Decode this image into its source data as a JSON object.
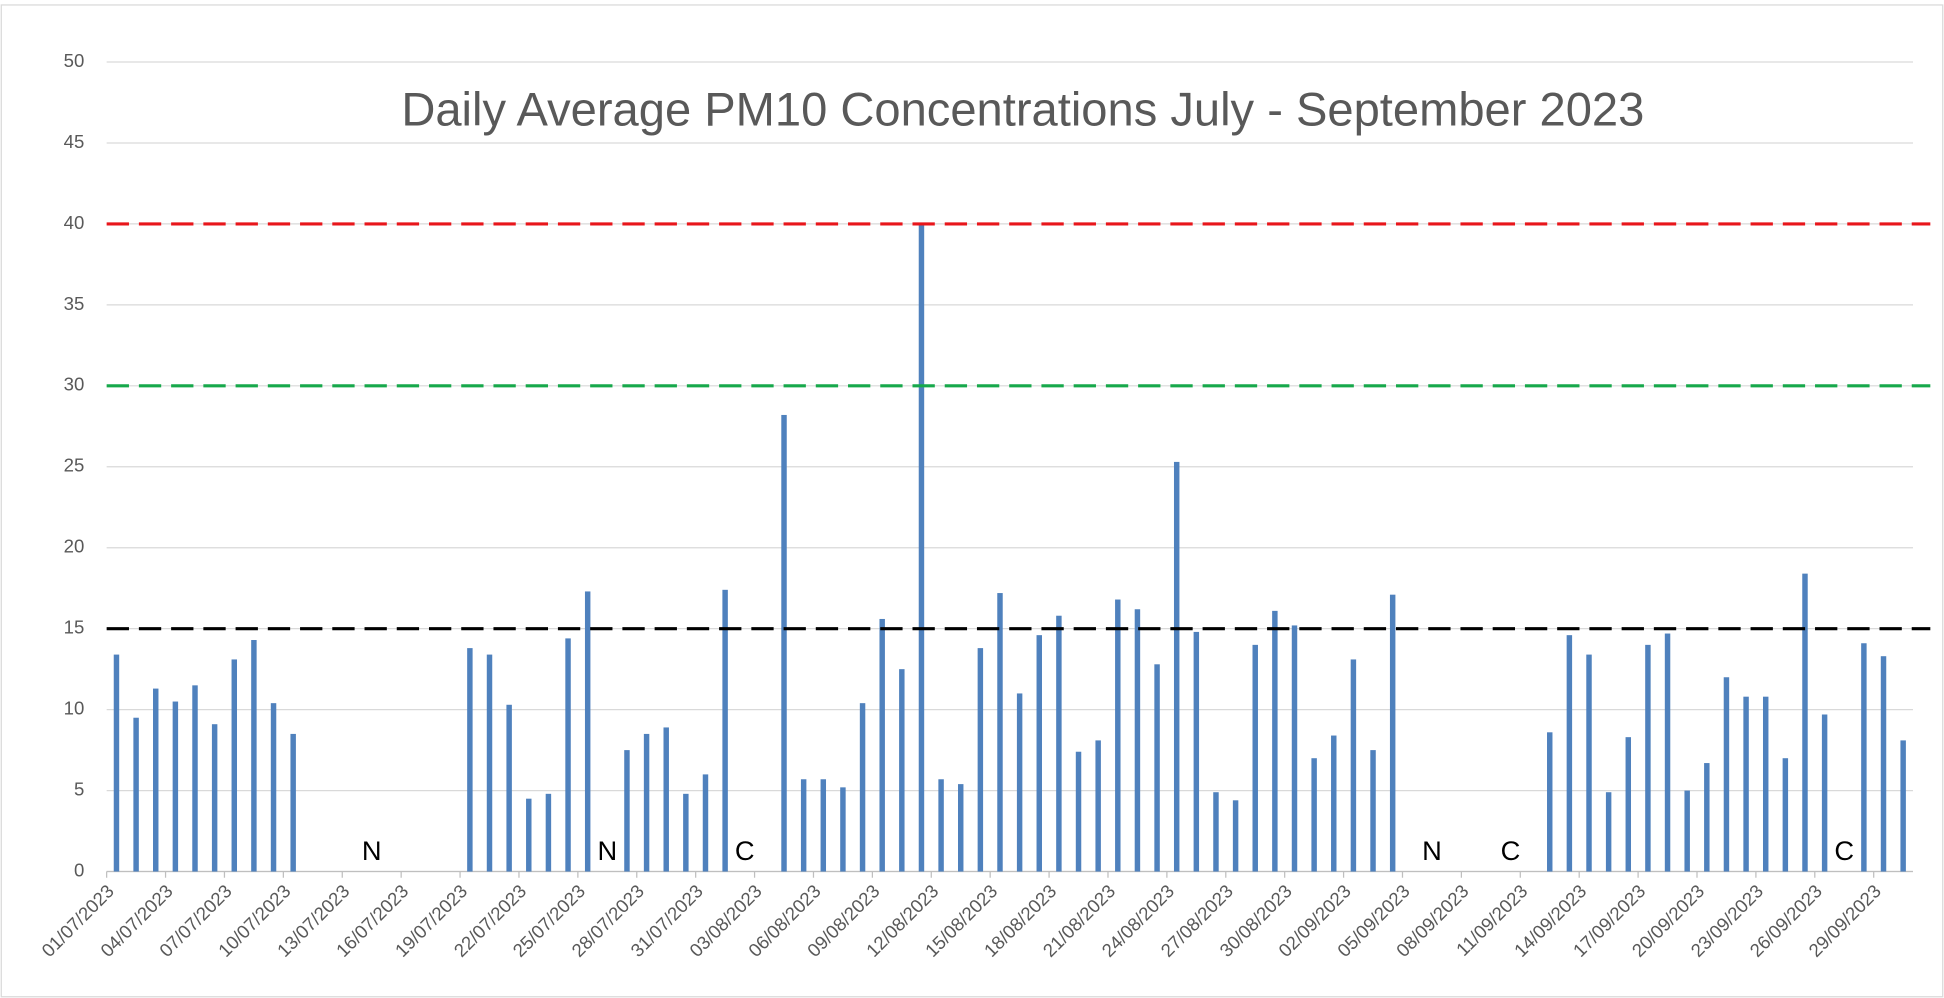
{
  "chart_data": {
    "type": "bar",
    "title": "Daily Average PM10 Concentrations July - September 2023",
    "categories": [
      "01/07/2023",
      null,
      null,
      "04/07/2023",
      null,
      null,
      "07/07/2023",
      null,
      null,
      "10/07/2023",
      null,
      null,
      "13/07/2023",
      null,
      null,
      "16/07/2023",
      null,
      null,
      "19/07/2023",
      null,
      null,
      "22/07/2023",
      null,
      null,
      "25/07/2023",
      null,
      null,
      "28/07/2023",
      null,
      null,
      "31/07/2023",
      null,
      null,
      "03/08/2023",
      null,
      null,
      "06/08/2023",
      null,
      null,
      "09/08/2023",
      null,
      null,
      "12/08/2023",
      null,
      null,
      "15/08/2023",
      null,
      null,
      "18/08/2023",
      null,
      null,
      "21/08/2023",
      null,
      null,
      "24/08/2023",
      null,
      null,
      "27/08/2023",
      null,
      null,
      "30/08/2023",
      null,
      null,
      "02/09/2023",
      null,
      null,
      "05/09/2023",
      null,
      null,
      "08/09/2023",
      null,
      null,
      "11/09/2023",
      null,
      null,
      "14/09/2023",
      null,
      null,
      "17/09/2023",
      null,
      null,
      "20/09/2023",
      null,
      null,
      "23/09/2023",
      null,
      null,
      "26/09/2023",
      null,
      null,
      "29/09/2023",
      null
    ],
    "values": [
      13.4,
      9.5,
      11.3,
      10.5,
      11.5,
      9.1,
      13.1,
      14.3,
      10.4,
      8.5,
      null,
      null,
      null,
      null,
      null,
      null,
      null,
      null,
      13.8,
      13.4,
      10.3,
      4.5,
      4.8,
      14.4,
      17.3,
      null,
      7.5,
      8.5,
      8.9,
      4.8,
      6.0,
      17.4,
      null,
      null,
      28.2,
      5.7,
      5.7,
      5.2,
      10.4,
      15.6,
      12.5,
      40,
      5.7,
      5.4,
      13.8,
      17.2,
      11.0,
      14.6,
      15.8,
      7.4,
      8.1,
      16.8,
      16.2,
      12.8,
      25.3,
      14.8,
      4.9,
      4.4,
      14.0,
      16.1,
      15.2,
      7.0,
      8.4,
      13.1,
      7.5,
      17.1,
      null,
      null,
      null,
      null,
      null,
      null,
      null,
      8.6,
      14.6,
      13.4,
      4.9,
      8.3,
      14.0,
      14.7,
      5.0,
      6.7,
      12.0,
      10.8,
      10.8,
      7.0,
      18.4,
      9.7,
      null,
      14.1,
      13.3,
      8.1
    ],
    "color": "#4f81bd",
    "ylim": [
      0,
      50
    ],
    "yticks": [
      0,
      5,
      10,
      15,
      20,
      25,
      30,
      35,
      40,
      45,
      50
    ],
    "grid": true,
    "reference_lines": [
      {
        "value": 40,
        "color": "#e8161b"
      },
      {
        "value": 30,
        "color": "#17a84b"
      },
      {
        "value": 15,
        "color": "#000000"
      }
    ],
    "annotations": [
      {
        "text": "N",
        "index": 13
      },
      {
        "text": "N",
        "index": 25
      },
      {
        "text": "C",
        "index": 32
      },
      {
        "text": "N",
        "index": 67
      },
      {
        "text": "C",
        "index": 71
      },
      {
        "text": "C",
        "index": 88
      }
    ]
  }
}
